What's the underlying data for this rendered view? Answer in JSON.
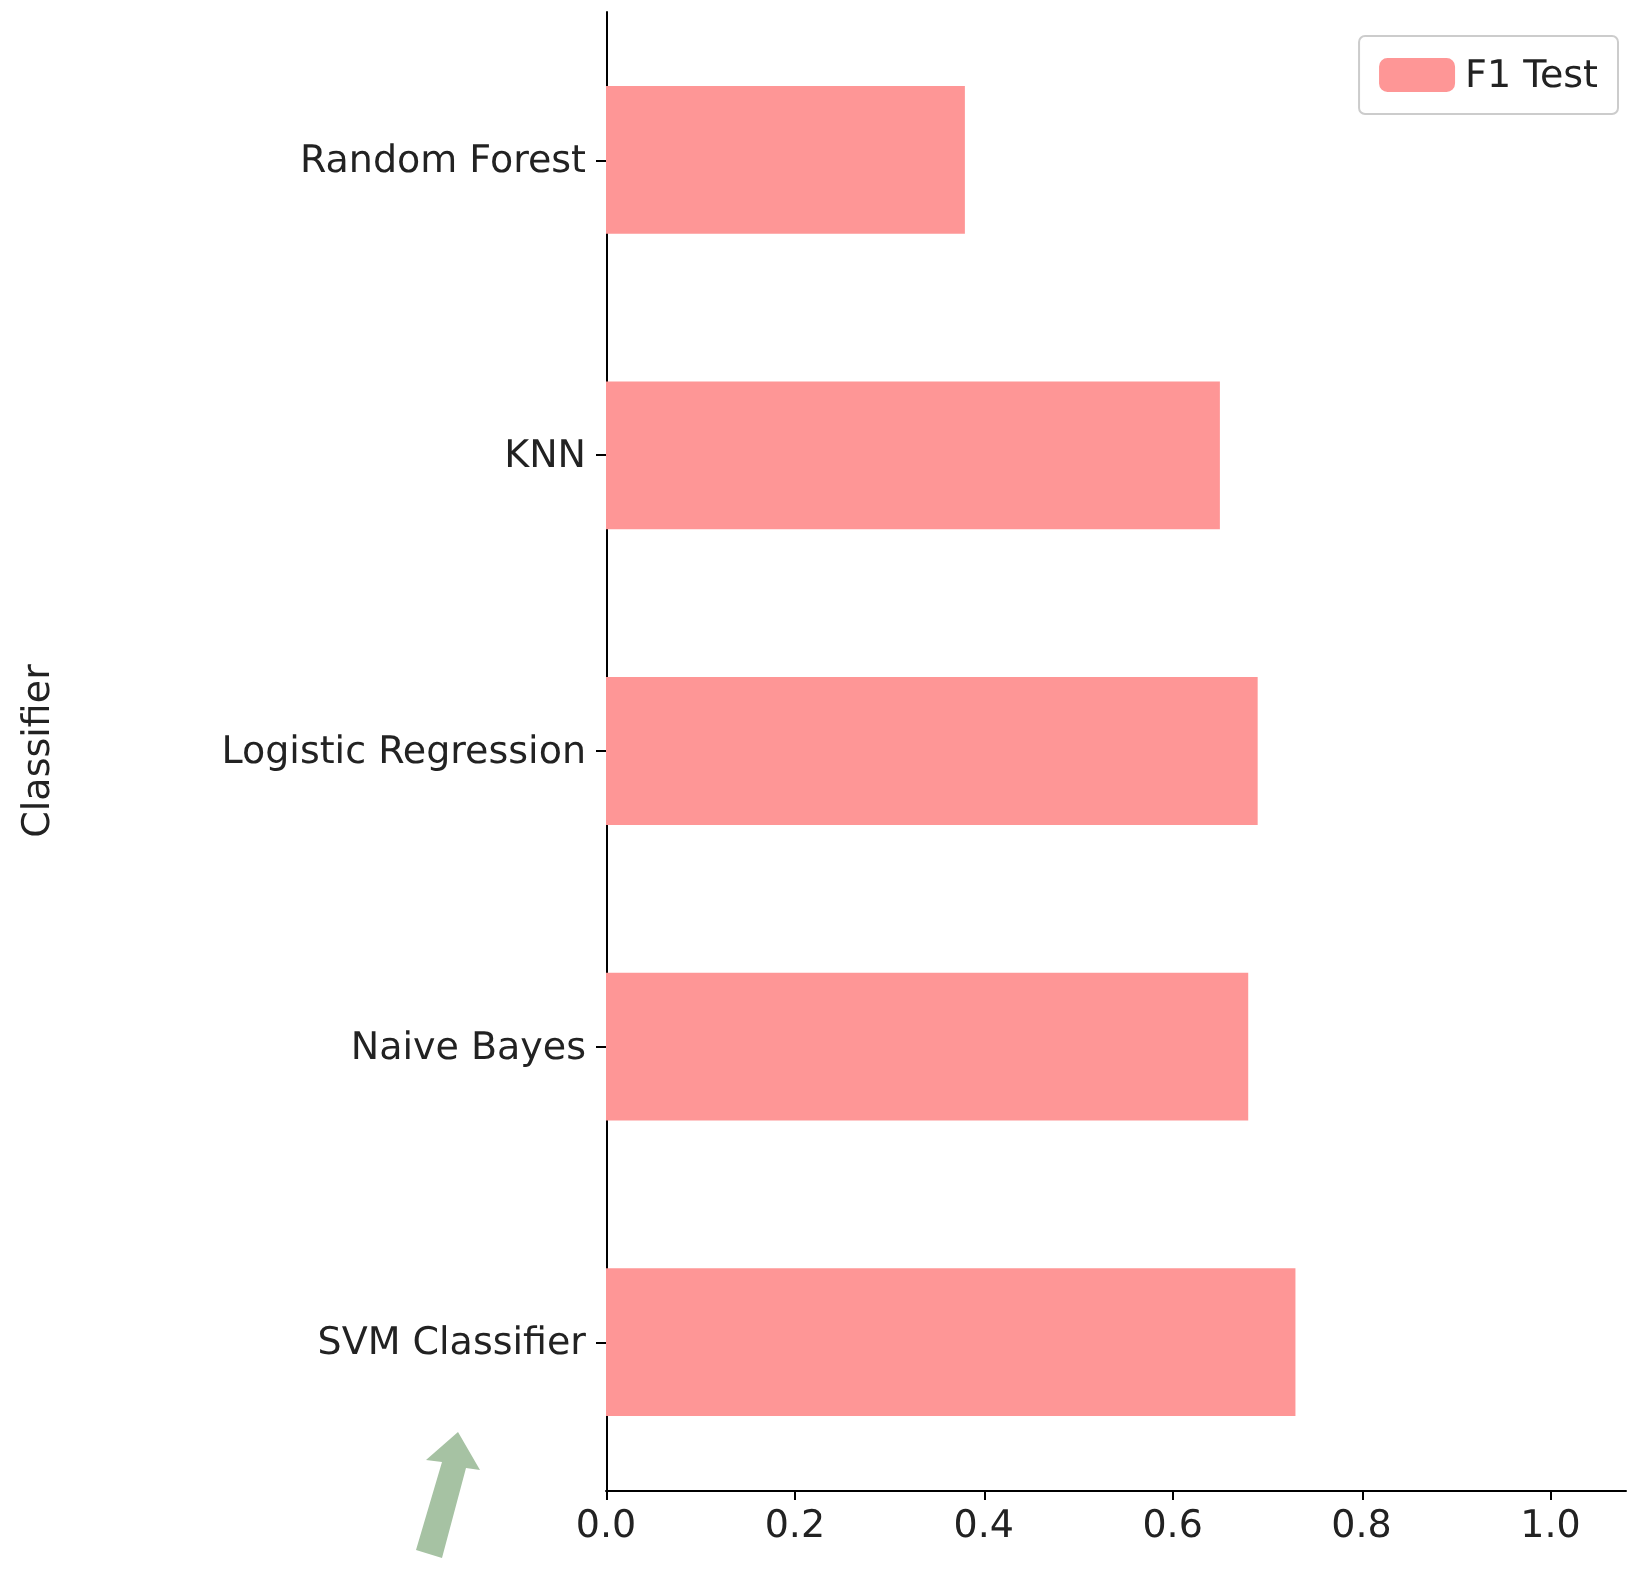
{
  "chart_data": {
    "type": "bar",
    "orientation": "horizontal",
    "ylabel": "Classifier",
    "categories": [
      "Random Forest",
      "KNN",
      "Logistic Regression",
      "Naive Bayes",
      "SVM Classifier"
    ],
    "series": [
      {
        "name": "F1 Test",
        "color": "#fe9696",
        "values": [
          0.38,
          0.65,
          0.69,
          0.68,
          0.73
        ]
      }
    ],
    "xlim": [
      0,
      1.08
    ],
    "xticks": [
      {
        "value": 0,
        "label": "0.0"
      },
      0.2,
      0.4,
      0.6,
      0.8,
      {
        "value": 1,
        "label": "1.0"
      }
    ],
    "legend": "top right",
    "grid": false
  }
}
